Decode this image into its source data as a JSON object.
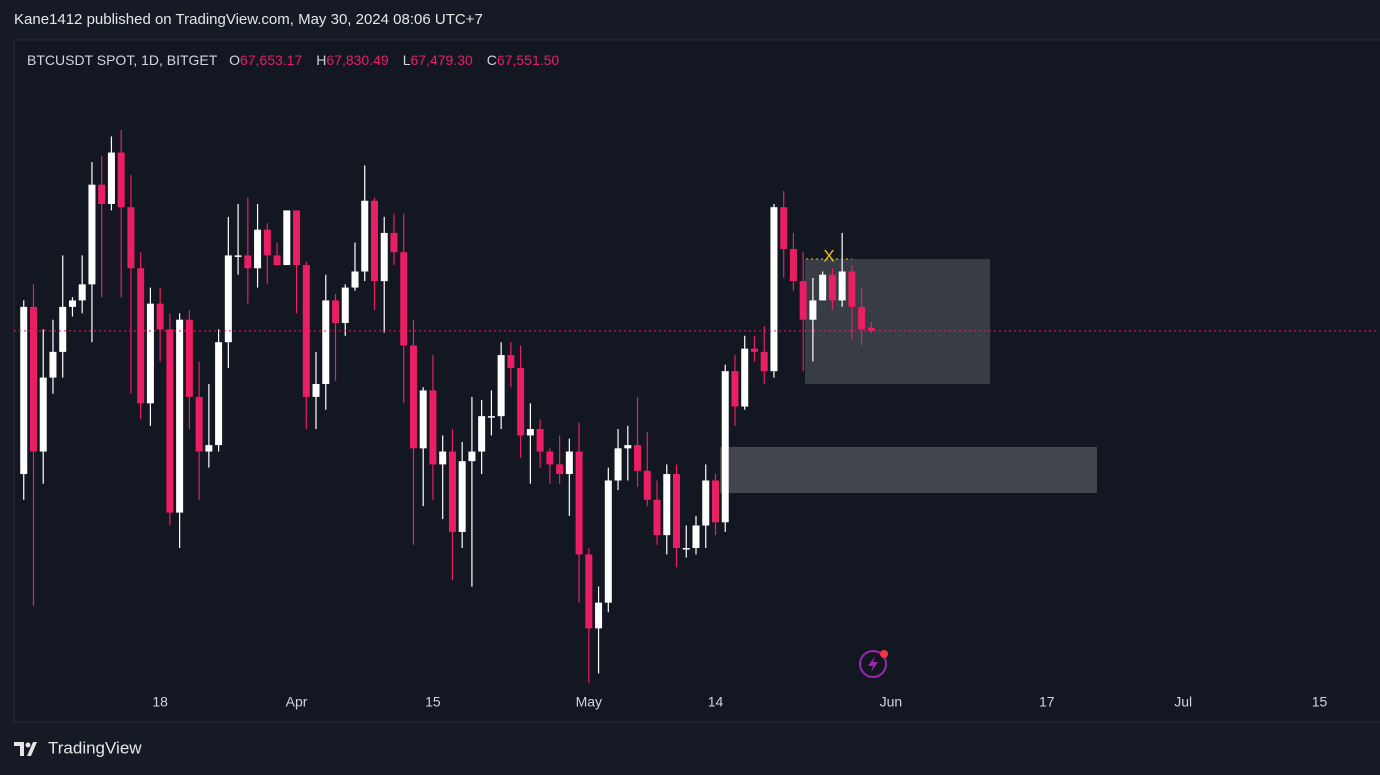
{
  "header": {
    "text": "Kane1412 published on TradingView.com, May 30, 2024 08:06 UTC+7"
  },
  "footer": {
    "brand": "TradingView"
  },
  "chart_data": {
    "type": "candlestick",
    "symbol": "BTCUSDT SPOT, 1D, BITGET",
    "readout": [
      {
        "key": "O",
        "label": "67,653.17"
      },
      {
        "key": "H",
        "label": "67,830.49"
      },
      {
        "key": "L",
        "label": "67,479.30"
      },
      {
        "key": "C",
        "label": "67,551.50"
      }
    ],
    "up_color": "#ffffff",
    "down_color": "#e91e63",
    "price_line_color": "#e91e63",
    "annotations": [
      {
        "text": "X",
        "color": "#e6c21f"
      }
    ],
    "xlim": [
      "Mar 3",
      "Jul 21"
    ],
    "xticks": [
      {
        "value": "Mar 18",
        "label": "18"
      },
      {
        "value": "Apr 1",
        "label": "Apr"
      },
      {
        "value": "Apr 15",
        "label": "15"
      },
      {
        "value": "May 1",
        "label": "May"
      },
      {
        "value": "May 14",
        "label": "14"
      },
      {
        "value": "Jun 1",
        "label": "Jun"
      },
      {
        "value": "Jun 17",
        "label": "17"
      },
      {
        "value": "Jul 1",
        "label": "Jul"
      },
      {
        "value": "Jul 15",
        "label": "15"
      }
    ],
    "ylim": [
      55450,
      76600
    ],
    "x": [
      "Mar 4",
      "Mar 5",
      "Mar 6",
      "Mar 7",
      "Mar 8",
      "Mar 9",
      "Mar 10",
      "Mar 11",
      "Mar 12",
      "Mar 13",
      "Mar 14",
      "Mar 15",
      "Mar 16",
      "Mar 17",
      "Mar 18",
      "Mar 19",
      "Mar 20",
      "Mar 21",
      "Mar 22",
      "Mar 23",
      "Mar 24",
      "Mar 25",
      "Mar 26",
      "Mar 27",
      "Mar 28",
      "Mar 29",
      "Mar 30",
      "Mar 31",
      "Apr 1",
      "Apr 2",
      "Apr 3",
      "Apr 4",
      "Apr 5",
      "Apr 6",
      "Apr 7",
      "Apr 8",
      "Apr 9",
      "Apr 10",
      "Apr 11",
      "Apr 12",
      "Apr 13",
      "Apr 14",
      "Apr 15",
      "Apr 16",
      "Apr 17",
      "Apr 18",
      "Apr 19",
      "Apr 20",
      "Apr 21",
      "Apr 22",
      "Apr 23",
      "Apr 24",
      "Apr 25",
      "Apr 26",
      "Apr 27",
      "Apr 28",
      "Apr 29",
      "Apr 30",
      "May 1",
      "May 2",
      "May 3",
      "May 4",
      "May 5",
      "May 6",
      "May 7",
      "May 8",
      "May 9",
      "May 10",
      "May 11",
      "May 12",
      "May 13",
      "May 14",
      "May 15",
      "May 16",
      "May 17",
      "May 18",
      "May 19",
      "May 20",
      "May 21",
      "May 22",
      "May 23",
      "May 24",
      "May 25",
      "May 26",
      "May 27",
      "May 28",
      "May 29",
      "May 30"
    ],
    "open": [
      63100,
      68300,
      63800,
      66100,
      66900,
      68300,
      68500,
      69000,
      72100,
      71500,
      73100,
      71400,
      69500,
      65300,
      68400,
      67600,
      61900,
      67900,
      65500,
      63800,
      64000,
      67200,
      69900,
      69900,
      69500,
      70700,
      69900,
      69600,
      71300,
      69600,
      65500,
      65900,
      68500,
      67800,
      68900,
      69400,
      71600,
      69100,
      70600,
      70000,
      67100,
      63900,
      65700,
      63400,
      63800,
      61300,
      63500,
      63800,
      64900,
      64900,
      66800,
      66400,
      64300,
      64500,
      63800,
      63400,
      63100,
      63800,
      60600,
      58300,
      59100,
      62900,
      63900,
      64000,
      63200,
      62300,
      61200,
      63100,
      60800,
      60800,
      61500,
      62900,
      61600,
      66300,
      65200,
      67000,
      66900,
      66300,
      71400,
      70100,
      69100,
      67900,
      68500,
      69300,
      68500,
      69400,
      68300,
      67653.17
    ],
    "high": [
      68500,
      69000,
      67600,
      67900,
      69900,
      68600,
      69900,
      72800,
      73000,
      73600,
      73800,
      72400,
      70000,
      68900,
      68900,
      68100,
      68100,
      68200,
      66600,
      65900,
      67600,
      71100,
      71500,
      71700,
      71500,
      70900,
      70300,
      71300,
      71300,
      69700,
      66900,
      69300,
      68700,
      69000,
      70300,
      72700,
      71700,
      71100,
      71200,
      71200,
      67900,
      65800,
      66800,
      64300,
      64500,
      64100,
      65500,
      65400,
      65700,
      67200,
      67200,
      67100,
      65300,
      64800,
      63900,
      64300,
      64200,
      64700,
      60800,
      59600,
      63300,
      64500,
      64600,
      65500,
      64400,
      62900,
      63400,
      63400,
      61500,
      61800,
      63400,
      63100,
      66500,
      66800,
      67400,
      67400,
      67700,
      71500,
      71900,
      70600,
      70000,
      69200,
      69400,
      69500,
      70600,
      69600,
      68900,
      67830.49
    ],
    "low": [
      62300,
      59000,
      62800,
      65600,
      66100,
      68000,
      68100,
      67200,
      68600,
      71300,
      68600,
      65600,
      64800,
      64600,
      66600,
      61500,
      60800,
      64500,
      62300,
      63300,
      63800,
      66400,
      69300,
      68400,
      68900,
      69000,
      69600,
      69600,
      68100,
      64500,
      64500,
      65100,
      66000,
      67400,
      68800,
      69100,
      68200,
      67500,
      69600,
      65300,
      60900,
      62100,
      62300,
      61700,
      59800,
      60800,
      59600,
      63100,
      64300,
      64500,
      65800,
      63600,
      62800,
      63300,
      62800,
      62800,
      61800,
      59100,
      56600,
      56900,
      58800,
      62600,
      62900,
      62700,
      62100,
      60900,
      60600,
      60200,
      60500,
      60600,
      60800,
      61200,
      61300,
      64600,
      65100,
      66600,
      65900,
      66100,
      69200,
      68800,
      66300,
      66600,
      68500,
      68200,
      68300,
      67300,
      67100,
      67479.3
    ],
    "close": [
      68300,
      63800,
      66100,
      66900,
      68300,
      68500,
      69000,
      72100,
      71500,
      73100,
      71400,
      69500,
      65300,
      68400,
      67600,
      61900,
      67900,
      65500,
      63800,
      64000,
      67200,
      69900,
      69900,
      69500,
      70700,
      69900,
      69600,
      71300,
      69600,
      65500,
      65900,
      68500,
      67800,
      68900,
      69400,
      71600,
      69100,
      70600,
      70000,
      67100,
      63900,
      65700,
      63400,
      63800,
      61300,
      63500,
      63800,
      64900,
      64900,
      66800,
      66400,
      64300,
      64500,
      63800,
      63400,
      63100,
      63800,
      60600,
      58300,
      59100,
      62900,
      63900,
      64000,
      63200,
      62300,
      61200,
      63100,
      60800,
      60800,
      61500,
      62900,
      61600,
      66300,
      65200,
      67000,
      66900,
      66300,
      71400,
      70100,
      69100,
      67900,
      68500,
      69300,
      68500,
      69400,
      68300,
      67600,
      67551.5
    ]
  }
}
